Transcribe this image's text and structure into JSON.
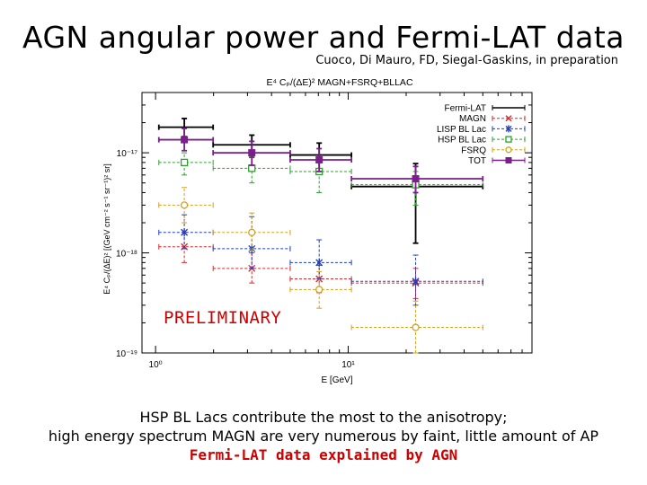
{
  "slide": {
    "title": "AGN angular power and Fermi-LAT data",
    "credit": "Cuoco, Di Mauro, FD, Siegal-Gaskins, in preparation",
    "watermark": "PRELIMINARY",
    "caption_line1": "HSP BL Lacs contribute the most to the anisotropy;",
    "caption_line2": "high energy spectrum MAGN are very numerous by faint, little amount of AP",
    "caption_line3": "Fermi-LAT data explained by AGN"
  },
  "chart_data": {
    "type": "scatter",
    "title": "E⁴ Cₚ/(ΔE)² MAGN+FSRQ+BLLAC",
    "xlabel": "E [GeV]",
    "ylabel": "E⁴ Cₚ/(ΔE)² [(GeV cm⁻² s⁻¹ sr⁻¹)² sr]",
    "xscale": "log",
    "yscale": "log",
    "xlim": [
      0.85,
      90
    ],
    "ylim": [
      1e-19,
      4e-17
    ],
    "xticks": [
      {
        "v": 1,
        "label": "10⁰"
      },
      {
        "v": 10,
        "label": "10¹"
      }
    ],
    "yticks": [
      {
        "v": 1e-19,
        "label": "10⁻¹⁹"
      },
      {
        "v": 1e-18,
        "label": "10⁻¹⁸"
      },
      {
        "v": 1e-17,
        "label": "10⁻¹⁷"
      }
    ],
    "grid": false,
    "legend_position": "top-right",
    "bins": [
      {
        "lo": 1.04,
        "hi": 1.99
      },
      {
        "lo": 1.99,
        "hi": 5.0
      },
      {
        "lo": 5.0,
        "hi": 10.4
      },
      {
        "lo": 10.4,
        "hi": 50.0
      }
    ],
    "series": [
      {
        "name": "Fermi-LAT",
        "color": "#000000",
        "marker": "bar",
        "dashed": false,
        "x": [
          1.41,
          3.16,
          7.07,
          22.4
        ],
        "y": [
          1.8e-17,
          1.2e-17,
          9.5e-18,
          4.6e-18
        ],
        "ylo": [
          1.45e-17,
          9e-18,
          6.5e-18,
          1.25e-18
        ],
        "yhi": [
          2.2e-17,
          1.5e-17,
          1.25e-17,
          7.8e-18
        ]
      },
      {
        "name": "MAGN",
        "color": "#d62728",
        "marker": "x",
        "dashed": true,
        "x": [
          1.41,
          3.16,
          7.07,
          22.4
        ],
        "y": [
          1.15e-18,
          7e-19,
          5.5e-19,
          5e-19
        ],
        "ylo": [
          8e-19,
          5e-19,
          4e-19,
          3.5e-19
        ],
        "yhi": [
          1.6e-18,
          1e-18,
          7.5e-19,
          7e-19
        ]
      },
      {
        "name": "LISP BL Lac",
        "color": "#1f3fbf",
        "marker": "asterisk",
        "dashed": true,
        "x": [
          1.41,
          3.16,
          7.07,
          22.4
        ],
        "y": [
          1.6e-18,
          1.1e-18,
          8e-19,
          5.2e-19
        ],
        "ylo": [
          1.1e-18,
          7e-19,
          5.5e-19,
          3e-19
        ],
        "yhi": [
          2.4e-18,
          2.3e-18,
          1.35e-18,
          9.5e-19
        ]
      },
      {
        "name": "HSP BL Lac",
        "color": "#2ca02c",
        "marker": "square",
        "dashed": true,
        "x": [
          1.41,
          3.16,
          7.07,
          22.4
        ],
        "y": [
          8e-18,
          7e-18,
          6.5e-18,
          4.8e-18
        ],
        "ylo": [
          6e-18,
          5e-18,
          4e-18,
          3e-18
        ],
        "yhi": [
          1e-17,
          9e-18,
          8.5e-18,
          6.5e-18
        ]
      },
      {
        "name": "FSRQ",
        "color": "#d4a017",
        "marker": "circle",
        "dashed": true,
        "x": [
          1.41,
          3.16,
          7.07,
          22.4
        ],
        "y": [
          3e-18,
          1.6e-18,
          4.3e-19,
          1.8e-19
        ],
        "ylo": [
          2e-18,
          1.05e-18,
          2.8e-19,
          1e-19
        ],
        "yhi": [
          4.5e-18,
          2.5e-18,
          6.5e-19,
          3.3e-19
        ]
      },
      {
        "name": "TOT",
        "color": "#7a1f8a",
        "marker": "filledsquare",
        "dashed": false,
        "x": [
          1.41,
          3.16,
          7.07,
          22.4
        ],
        "y": [
          1.35e-17,
          1e-17,
          8.5e-18,
          5.5e-18
        ],
        "ylo": [
          1.05e-17,
          7.5e-18,
          6.5e-18,
          4e-18
        ],
        "yhi": [
          1.75e-17,
          1.3e-17,
          1.1e-17,
          7.3e-18
        ]
      }
    ]
  }
}
